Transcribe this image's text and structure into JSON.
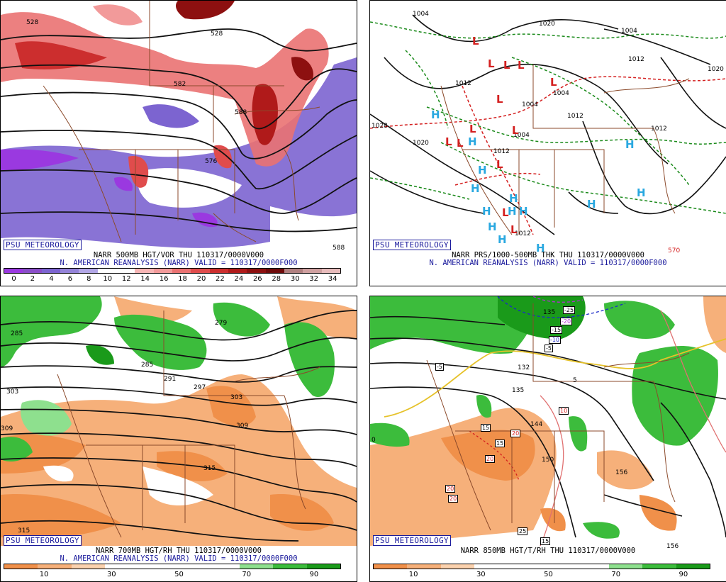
{
  "panels": [
    {
      "id": "p1",
      "badge": "PSU METEOROLOGY",
      "header_line1": "NARR 500MB HGT/VOR THU 110317/0000V000",
      "header_line2": "N. AMERICAN REANALYSIS (NARR) VALID = 110317/0000F000",
      "colorbar_ticks": [
        "0",
        "2",
        "4",
        "6",
        "8",
        "10",
        "12",
        "14",
        "16",
        "18",
        "20",
        "22",
        "24",
        "26",
        "28",
        "30",
        "32",
        "34"
      ],
      "colorbar_colors": [
        "#9a39e0",
        "#8a4ec8",
        "#7c64d0",
        "#9483d8",
        "#b2a6e6",
        "#ffffff",
        "#ffffff",
        "#f7b5b5",
        "#f29a9a",
        "#ea7272",
        "#e04c4c",
        "#cc2e2e",
        "#b01a1a",
        "#8d1010",
        "#6e0a0a",
        "#b08080",
        "#cfa0a0",
        "#e8bcbc"
      ],
      "labels": [
        {
          "t": "528"
        },
        {
          "t": "528"
        },
        {
          "t": "582"
        },
        {
          "t": "588"
        },
        {
          "t": "576"
        },
        {
          "t": "588"
        }
      ]
    },
    {
      "id": "p2",
      "badge": "PSU METEOROLOGY",
      "header_line1": "NARR PRS/1000-500MB THK THU 110317/0000V000",
      "header_line2": "N. AMERICAN REANALYSIS (NARR) VALID = 110317/0000F000",
      "labels": [
        {
          "t": "1004"
        },
        {
          "t": "1020"
        },
        {
          "t": "1004"
        },
        {
          "t": "1012"
        },
        {
          "t": "1020"
        },
        {
          "t": "1012"
        },
        {
          "t": "1004"
        },
        {
          "t": "1004"
        },
        {
          "t": "1012"
        },
        {
          "t": "1028"
        },
        {
          "t": "1020"
        },
        {
          "t": "1004"
        },
        {
          "t": "1012"
        },
        {
          "t": "1012"
        },
        {
          "t": "1012"
        },
        {
          "t": "570"
        }
      ],
      "high_symbol": "H",
      "low_symbol": "L"
    },
    {
      "id": "p3",
      "badge": "PSU METEOROLOGY",
      "header_line1": "NARR 700MB HGT/RH THU 110317/0000V000",
      "header_line2": "N. AMERICAN REANALYSIS (NARR) VALID = 110317/0000F000",
      "colorbar_ticks": [
        "10",
        "30",
        "50",
        "70",
        "90"
      ],
      "colorbar_colors": [
        "#f0904a",
        "#f6b07a",
        "#fbd2ae",
        "#ffffff",
        "#ffffff",
        "#ffffff",
        "#ffffff",
        "#8ee08e",
        "#3cbc3c",
        "#1a9a1a"
      ],
      "labels": [
        {
          "t": "285"
        },
        {
          "t": "279"
        },
        {
          "t": "285"
        },
        {
          "t": "291"
        },
        {
          "t": "297"
        },
        {
          "t": "303"
        },
        {
          "t": "303"
        },
        {
          "t": "309"
        },
        {
          "t": "309"
        },
        {
          "t": "315"
        },
        {
          "t": "315"
        }
      ]
    },
    {
      "id": "p4",
      "badge": "PSU METEOROLOGY",
      "header_line1": "NARR 850MB HGT/T/RH THU 110317/0000V000",
      "colorbar_ticks": [
        "10",
        "30",
        "50",
        "70",
        "90"
      ],
      "colorbar_colors": [
        "#f0904a",
        "#f6b07a",
        "#fbd2ae",
        "#ffffff",
        "#ffffff",
        "#ffffff",
        "#ffffff",
        "#8ee08e",
        "#3cbc3c",
        "#1a9a1a"
      ],
      "labels": [
        {
          "t": "135"
        },
        {
          "t": "-25"
        },
        {
          "t": "-20"
        },
        {
          "t": "-15"
        },
        {
          "t": "-10"
        },
        {
          "t": "-5"
        },
        {
          "t": "-5"
        },
        {
          "t": "132"
        },
        {
          "t": "135"
        },
        {
          "t": "5"
        },
        {
          "t": "15"
        },
        {
          "t": "20"
        },
        {
          "t": "15"
        },
        {
          "t": "20"
        },
        {
          "t": "10"
        },
        {
          "t": "144"
        },
        {
          "t": "150"
        },
        {
          "t": "20"
        },
        {
          "t": "20"
        },
        {
          "t": "156"
        },
        {
          "t": "25"
        },
        {
          "t": "156"
        },
        {
          "t": "0"
        },
        {
          "t": "15"
        }
      ]
    }
  ]
}
